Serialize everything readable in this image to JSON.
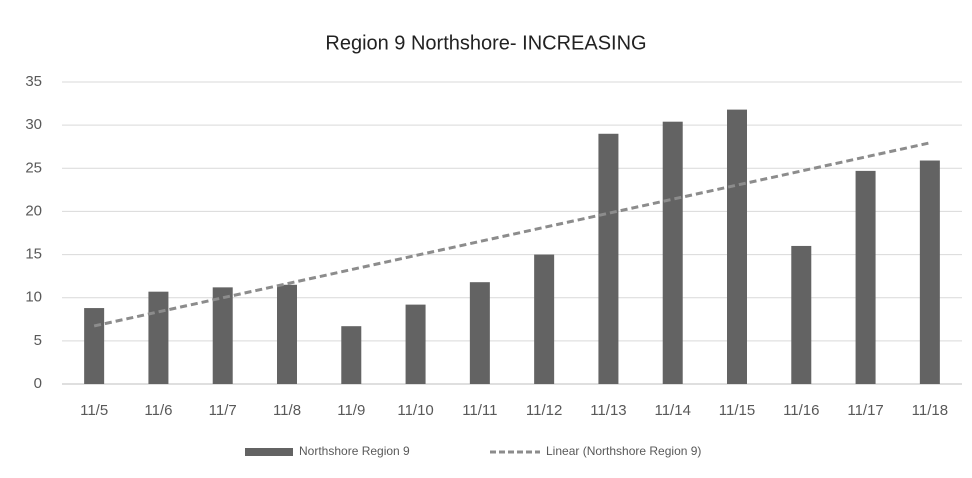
{
  "chart_data": {
    "type": "bar",
    "title": "Region 9 Northshore- INCREASING",
    "categories": [
      "11/5",
      "11/6",
      "11/7",
      "11/8",
      "11/9",
      "11/10",
      "11/11",
      "11/12",
      "11/13",
      "11/14",
      "11/15",
      "11/16",
      "11/17",
      "11/18"
    ],
    "series": [
      {
        "name": "Northshore Region 9",
        "color": "#636363",
        "values": [
          8.8,
          10.7,
          11.2,
          11.5,
          6.7,
          9.2,
          11.8,
          15,
          29,
          30.4,
          31.8,
          16,
          24.7,
          25.9
        ]
      }
    ],
    "trendline": {
      "name": "Linear (Northshore Region 9)",
      "fit": "linear",
      "color": "#8c8c8c"
    },
    "ylim": [
      0,
      35
    ],
    "yticks": [
      0,
      5,
      10,
      15,
      20,
      25,
      30,
      35
    ],
    "grid": true,
    "legend": "bottom"
  }
}
